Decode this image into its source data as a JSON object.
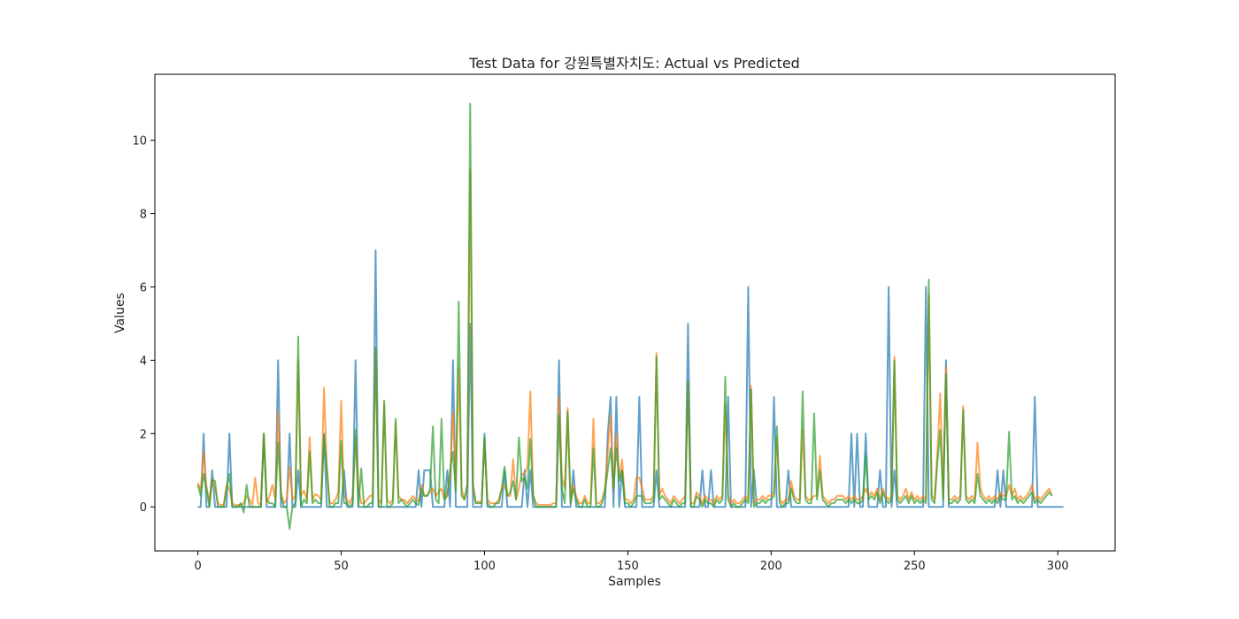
{
  "chart_data": {
    "type": "line",
    "title": "Test Data for 강원특별자치도: Actual vs Predicted",
    "xlabel": "Samples",
    "ylabel": "Values",
    "xlim": [
      -15,
      320
    ],
    "ylim": [
      -1.2,
      11.8
    ],
    "xticks": [
      0,
      50,
      100,
      150,
      200,
      250,
      300
    ],
    "yticks": [
      0,
      2,
      4,
      6,
      8,
      10
    ],
    "grid": false,
    "legend": "none",
    "series": [
      {
        "color": "#1f77b4",
        "values": [
          0,
          0,
          2,
          0,
          0,
          1,
          0,
          0,
          0,
          0,
          0,
          2,
          0,
          0,
          0,
          0,
          0,
          0,
          0,
          0,
          0,
          0,
          0,
          2,
          0,
          0,
          0,
          0,
          4,
          0,
          0,
          0,
          2,
          0,
          0,
          1,
          0,
          0,
          0,
          0,
          0,
          0,
          0,
          0,
          2,
          0,
          0,
          0,
          0,
          0,
          0,
          1,
          0,
          0,
          0,
          4,
          0,
          0,
          0,
          0,
          0,
          0,
          7,
          0,
          0,
          0,
          0,
          0,
          0,
          0,
          0,
          0,
          0,
          0,
          0,
          0,
          0,
          1,
          0,
          1,
          1,
          1,
          0,
          0,
          0,
          0,
          0,
          1,
          0,
          4,
          0,
          0,
          0,
          0,
          0,
          5,
          0,
          0,
          0,
          0,
          2,
          0,
          0,
          0,
          0,
          0,
          0,
          1,
          0,
          0,
          0,
          0,
          0,
          0,
          1,
          0,
          1,
          0,
          0,
          0,
          0,
          0,
          0,
          0,
          0,
          0,
          4,
          0,
          0,
          0,
          0,
          1,
          0,
          0,
          0,
          0,
          0,
          0,
          0,
          0,
          0,
          0,
          0,
          2,
          3,
          0,
          3,
          0,
          1,
          0,
          0,
          0,
          0,
          0,
          3,
          0,
          0,
          0,
          0,
          0,
          1,
          0,
          0,
          0,
          0,
          0,
          0,
          0,
          0,
          0,
          0,
          5,
          0,
          0,
          0,
          0,
          1,
          0,
          0,
          1,
          0,
          0,
          0,
          0,
          0,
          3,
          0,
          0,
          0,
          0,
          0,
          0,
          6,
          0,
          1,
          0,
          0,
          0,
          0,
          0,
          0,
          3,
          0,
          0,
          0,
          0,
          1,
          0,
          0,
          0,
          0,
          0,
          0,
          0,
          0,
          0,
          0,
          0,
          0,
          0,
          0,
          0,
          0,
          0,
          0,
          0,
          0,
          0,
          2,
          0,
          2,
          0,
          0,
          2,
          0,
          0,
          0,
          0,
          1,
          0,
          0,
          6,
          0,
          1,
          0,
          0,
          0,
          0,
          0,
          0,
          0,
          0,
          0,
          0,
          6,
          0,
          0,
          0,
          0,
          0,
          0,
          4,
          0,
          0,
          0,
          0,
          0,
          0,
          0,
          0,
          0,
          0,
          0,
          0,
          0,
          0,
          0,
          0,
          0,
          1,
          0,
          1,
          0,
          0,
          0,
          0,
          0,
          0,
          0,
          0,
          0,
          0,
          3,
          0,
          0,
          0,
          0,
          0,
          0,
          0,
          0,
          0,
          0
        ]
      },
      {
        "color": "#ff7f0e",
        "values": [
          0.65,
          0.45,
          1.5,
          0.55,
          0.15,
          0.75,
          0.5,
          0.1,
          0.05,
          0.05,
          0.6,
          0.5,
          0.1,
          0.05,
          0.05,
          0.05,
          0.1,
          0.3,
          0.2,
          0.05,
          0.8,
          0.1,
          0.05,
          2.0,
          0.1,
          0.3,
          0.6,
          0.2,
          2.6,
          0.4,
          0.1,
          0.2,
          1.1,
          0.2,
          0.3,
          4.0,
          0.3,
          0.45,
          0.2,
          1.9,
          0.2,
          0.35,
          0.3,
          0.2,
          3.25,
          1.1,
          0.1,
          0.1,
          0.2,
          0.4,
          2.9,
          0.3,
          0.2,
          0.1,
          0.3,
          1.9,
          0.6,
          0.1,
          0.1,
          0.2,
          0.3,
          0.3,
          4.3,
          0.2,
          0.1,
          2.8,
          0.2,
          0.1,
          0.2,
          2.3,
          0.3,
          0.2,
          0.2,
          0.1,
          0.2,
          0.3,
          0.2,
          0.15,
          0.6,
          0.3,
          0.3,
          0.4,
          0.5,
          0.3,
          0.4,
          0.5,
          0.2,
          0.4,
          0.8,
          2.6,
          0.6,
          3.8,
          0.5,
          0.2,
          0.6,
          9.2,
          0.5,
          0.1,
          0.15,
          0.1,
          1.8,
          0.2,
          0.1,
          0.1,
          0.1,
          0.2,
          0.5,
          0.6,
          0.3,
          0.3,
          1.3,
          0.2,
          0.5,
          0.9,
          0.9,
          1.1,
          3.15,
          0.3,
          0.1,
          0.05,
          0.05,
          0.05,
          0.05,
          0.05,
          0.1,
          0.1,
          3.0,
          0.8,
          0.5,
          2.7,
          0.2,
          0.6,
          0.3,
          0.1,
          0.1,
          0.3,
          0.1,
          0.1,
          2.4,
          0.1,
          0.1,
          0.2,
          0.5,
          1.5,
          2.5,
          0.5,
          2.0,
          0.8,
          1.3,
          0.2,
          0.2,
          0.1,
          0.2,
          0.8,
          0.8,
          0.5,
          0.2,
          0.2,
          0.2,
          0.3,
          4.2,
          0.3,
          0.5,
          0.3,
          0.2,
          0.1,
          0.3,
          0.2,
          0.1,
          0.2,
          0.3,
          3.4,
          0.1,
          0.1,
          0.4,
          0.3,
          0.1,
          0.3,
          0.2,
          0.2,
          0.1,
          0.3,
          0.2,
          0.3,
          2.8,
          0.3,
          0.1,
          0.2,
          0.1,
          0.1,
          0.2,
          0.3,
          0.2,
          3.3,
          0.1,
          0.2,
          0.2,
          0.3,
          0.2,
          0.3,
          0.3,
          0.4,
          1.9,
          0.2,
          0.1,
          0.2,
          0.2,
          0.7,
          0.3,
          0.2,
          0.2,
          2.1,
          0.3,
          0.2,
          0.2,
          0.3,
          0.3,
          1.4,
          0.3,
          0.2,
          0.1,
          0.2,
          0.2,
          0.3,
          0.3,
          0.3,
          0.2,
          0.3,
          0.2,
          0.3,
          0.2,
          0.2,
          0.3,
          0.5,
          0.3,
          0.4,
          0.3,
          0.5,
          0.2,
          0.5,
          0.3,
          0.2,
          0.3,
          4.1,
          0.3,
          0.2,
          0.3,
          0.5,
          0.2,
          0.4,
          0.2,
          0.3,
          0.2,
          0.3,
          0.2,
          5.8,
          0.3,
          0.2,
          1.5,
          3.1,
          0.3,
          3.8,
          0.2,
          0.2,
          0.3,
          0.2,
          0.3,
          2.75,
          0.3,
          0.2,
          0.3,
          0.2,
          1.75,
          0.5,
          0.3,
          0.2,
          0.3,
          0.2,
          0.3,
          0.2,
          0.4,
          0.3,
          0.3,
          0.6,
          0.3,
          0.5,
          0.2,
          0.3,
          0.2,
          0.3,
          0.4,
          0.6,
          0.2,
          0.3,
          0.2,
          0.3,
          0.4,
          0.5,
          0.3
        ]
      },
      {
        "color": "#2ca02c",
        "values": [
          0.6,
          0.3,
          0.9,
          0.5,
          0.0,
          0.75,
          0.7,
          0.0,
          0.0,
          0.0,
          0.5,
          0.9,
          0.0,
          0.0,
          0.0,
          0.1,
          -0.15,
          0.6,
          0.0,
          0.0,
          0.0,
          0.0,
          0.0,
          2.0,
          0.2,
          0.1,
          0.1,
          0.0,
          1.75,
          0.3,
          0.0,
          0.0,
          -0.6,
          0.0,
          0.1,
          4.65,
          0.0,
          0.2,
          0.1,
          1.5,
          0.1,
          0.2,
          0.1,
          0.1,
          1.95,
          1.0,
          0.0,
          0.0,
          0.1,
          0.1,
          1.8,
          0.1,
          0.1,
          0.0,
          0.1,
          2.1,
          0.0,
          1.05,
          0.0,
          0.0,
          0.1,
          0.1,
          4.35,
          0.0,
          0.0,
          2.9,
          0.0,
          0.0,
          0.1,
          2.4,
          0.1,
          0.2,
          0.1,
          0.0,
          0.1,
          0.2,
          0.1,
          0.05,
          0.5,
          0.3,
          0.3,
          0.5,
          2.2,
          0.2,
          0.1,
          2.4,
          0.2,
          0.3,
          1.0,
          1.5,
          0.4,
          5.6,
          0.3,
          0.2,
          0.6,
          11.0,
          0.6,
          0.1,
          0.1,
          0.1,
          1.9,
          0.1,
          0.0,
          0.0,
          0.1,
          0.1,
          0.5,
          1.1,
          0.3,
          0.4,
          0.7,
          0.2,
          1.9,
          0.7,
          0.8,
          0.5,
          1.85,
          0.3,
          0.0,
          0.0,
          0.0,
          0.0,
          0.0,
          0.0,
          0.0,
          0.0,
          2.5,
          0.5,
          0.1,
          2.6,
          0.1,
          0.5,
          0.2,
          0.0,
          0.0,
          0.2,
          0.0,
          0.0,
          1.6,
          0.0,
          0.0,
          0.1,
          0.4,
          1.0,
          1.6,
          0.5,
          1.6,
          0.7,
          1.0,
          0.1,
          0.1,
          0.0,
          0.1,
          0.3,
          0.3,
          0.3,
          0.1,
          0.1,
          0.1,
          0.2,
          4.1,
          0.2,
          0.3,
          0.2,
          0.1,
          0.0,
          0.2,
          0.1,
          0.0,
          0.1,
          0.1,
          3.4,
          0.0,
          0.0,
          0.3,
          0.2,
          0.0,
          0.2,
          0.1,
          0.1,
          0.0,
          0.2,
          0.1,
          0.2,
          3.55,
          0.2,
          0.0,
          0.1,
          0.0,
          0.0,
          0.1,
          0.2,
          0.1,
          3.2,
          0.0,
          0.1,
          0.1,
          0.2,
          0.1,
          0.2,
          0.2,
          0.3,
          2.2,
          0.1,
          0.0,
          0.1,
          0.1,
          0.5,
          0.2,
          0.1,
          0.1,
          3.15,
          0.2,
          0.1,
          0.1,
          2.55,
          0.2,
          1.0,
          0.2,
          0.1,
          0.0,
          0.1,
          0.1,
          0.2,
          0.2,
          0.2,
          0.1,
          0.2,
          0.1,
          0.2,
          0.1,
          0.1,
          0.2,
          1.4,
          0.2,
          0.3,
          0.2,
          0.4,
          0.1,
          0.4,
          0.2,
          0.1,
          0.2,
          4.0,
          0.2,
          0.1,
          0.2,
          0.3,
          0.1,
          0.3,
          0.1,
          0.2,
          0.1,
          0.2,
          0.1,
          6.2,
          0.2,
          0.1,
          1.2,
          2.1,
          0.2,
          3.6,
          0.1,
          0.1,
          0.2,
          0.1,
          0.2,
          2.65,
          0.2,
          0.1,
          0.2,
          0.1,
          0.9,
          0.3,
          0.2,
          0.1,
          0.2,
          0.1,
          0.2,
          0.1,
          0.3,
          0.2,
          0.2,
          2.05,
          0.2,
          0.3,
          0.1,
          0.2,
          0.1,
          0.2,
          0.3,
          0.4,
          0.1,
          0.2,
          0.1,
          0.2,
          0.3,
          0.4,
          0.3
        ]
      }
    ]
  }
}
